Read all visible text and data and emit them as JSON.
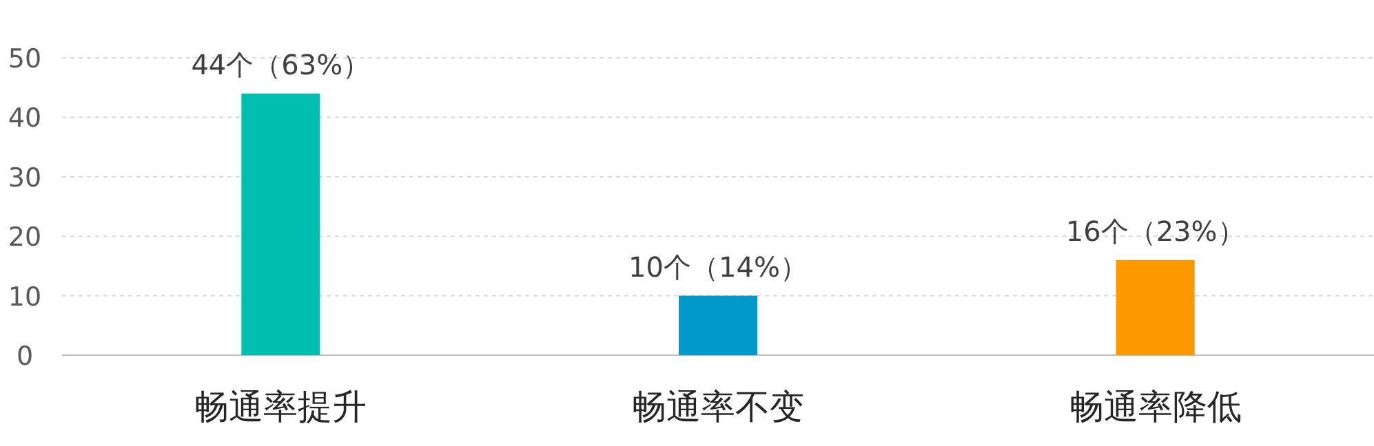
{
  "chart_data": {
    "type": "bar",
    "categories": [
      "畅通率提升",
      "畅通率不变",
      "畅通率降低"
    ],
    "values": [
      44,
      10,
      16
    ],
    "colors": [
      "#00bfb0",
      "#0099cc",
      "#ff9900"
    ],
    "value_labels": [
      "44个（63%）",
      "10个（14%）",
      "16个（23%）"
    ],
    "ylim": [
      0,
      50
    ],
    "yticks": [
      0,
      10,
      20,
      30,
      40,
      50
    ],
    "grid": "y"
  }
}
